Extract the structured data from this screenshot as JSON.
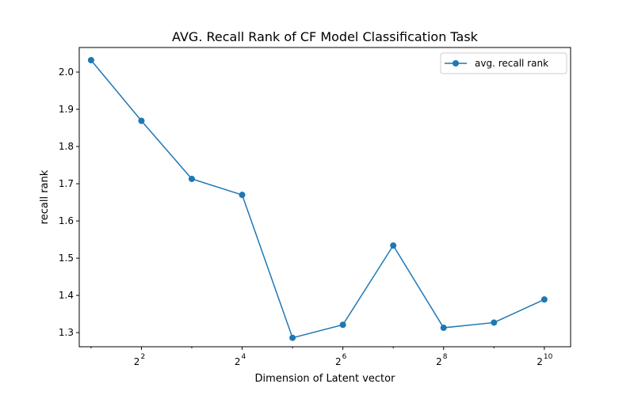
{
  "chart_data": {
    "type": "line",
    "title": "AVG. Recall Rank of CF Model Classification Task",
    "xlabel": "Dimension of Latent vector",
    "ylabel": "recall rank",
    "x_scale": "log2",
    "xlim": [
      1.7,
      1470
    ],
    "ylim": [
      1.262,
      2.066
    ],
    "x_ticks": [
      {
        "value": 4,
        "base": "2",
        "exp": "2"
      },
      {
        "value": 16,
        "base": "2",
        "exp": "4"
      },
      {
        "value": 64,
        "base": "2",
        "exp": "6"
      },
      {
        "value": 256,
        "base": "2",
        "exp": "8"
      },
      {
        "value": 1024,
        "base": "2",
        "exp": "10"
      }
    ],
    "y_ticks": [
      "1.3",
      "1.4",
      "1.5",
      "1.6",
      "1.7",
      "1.8",
      "1.9",
      "2.0"
    ],
    "grid": false,
    "legend": "top-right",
    "series": [
      {
        "name": "avg. recall rank",
        "color": "#1f77b4",
        "marker": "circle",
        "x": [
          2,
          4,
          8,
          16,
          32,
          64,
          128,
          256,
          512,
          1024
        ],
        "y": [
          2.032,
          1.869,
          1.713,
          1.67,
          1.286,
          1.321,
          1.534,
          1.313,
          1.327,
          1.389
        ]
      }
    ]
  }
}
